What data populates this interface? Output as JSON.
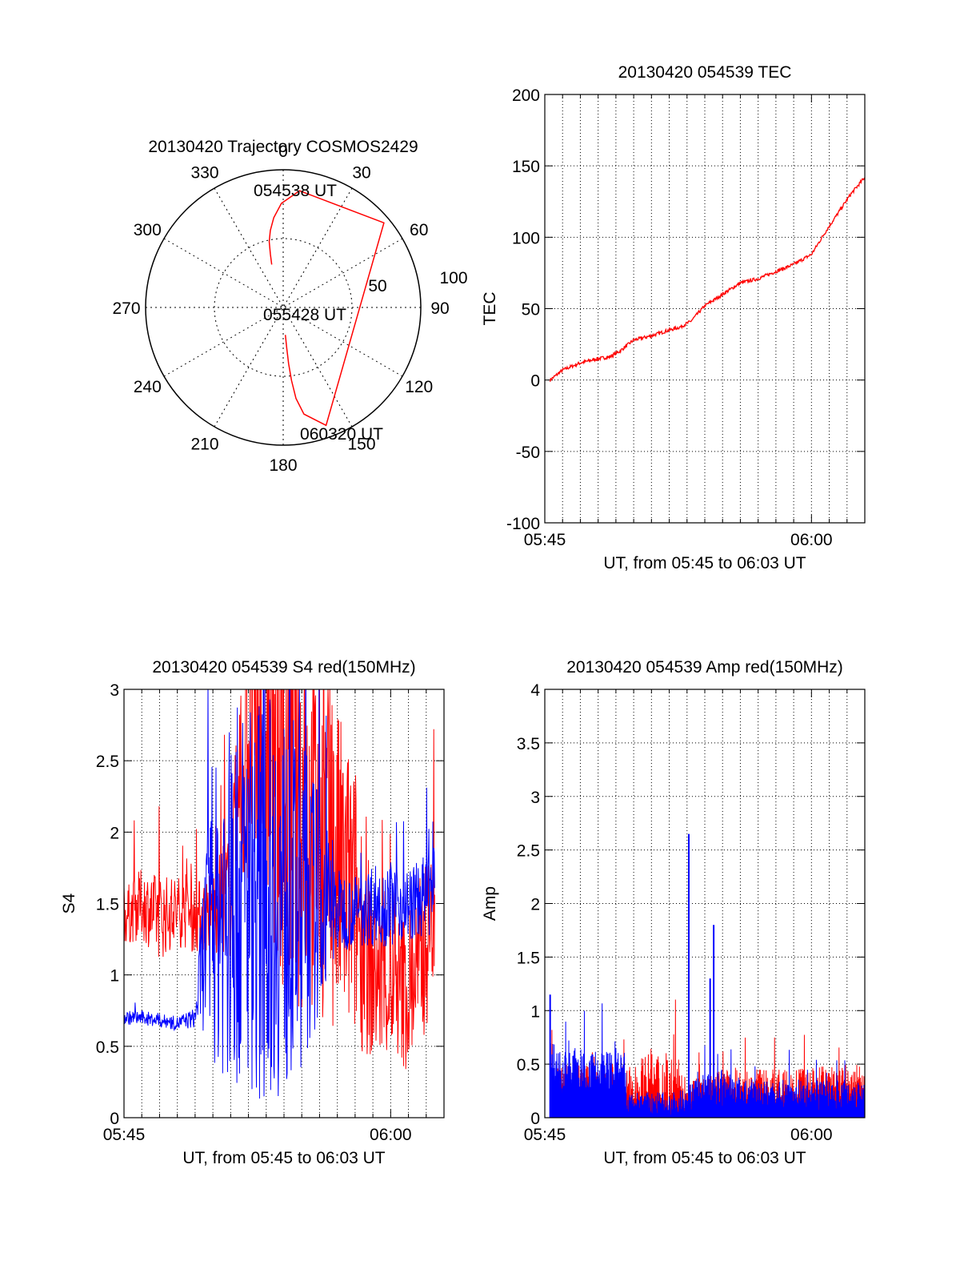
{
  "colors": {
    "red": "#ff0000",
    "blue": "#0000ff",
    "axis": "#000000"
  },
  "chart_data": [
    {
      "id": "trajectory",
      "type": "polar",
      "title": "20130420 Trajectory COSMOS2429",
      "azimuth_labels": [
        "0",
        "30",
        "60",
        "90",
        "120",
        "150",
        "180",
        "210",
        "240",
        "270",
        "300",
        "330"
      ],
      "radial_ticks": [
        "50",
        "100"
      ],
      "rlim": [
        0,
        100
      ],
      "grid": true,
      "series": [
        {
          "color": "red",
          "points": [
            {
              "az": 345.0,
              "el": 61
            },
            {
              "az": 346.5,
              "el": 54
            },
            {
              "az": 348.0,
              "el": 46
            },
            {
              "az": 350.5,
              "el": 39
            },
            {
              "az": 354.0,
              "el": 31
            },
            {
              "az": 359.0,
              "el": 22
            },
            {
              "az": 8.0,
              "el": 13
            },
            {
              "az": 50.0,
              "el": 4
            },
            {
              "az": 160.0,
              "el": 8
            },
            {
              "az": 169.0,
              "el": 19
            },
            {
              "az": 172.0,
              "el": 30
            },
            {
              "az": 173.5,
              "el": 42
            },
            {
              "az": 174.5,
              "el": 53
            },
            {
              "az": 175.0,
              "el": 63
            },
            {
              "az": 175.5,
              "el": 72
            }
          ]
        }
      ],
      "annotations": [
        "054538 UT",
        "055428 UT",
        "060320 UT"
      ]
    },
    {
      "id": "tec",
      "type": "line",
      "title": "20130420 054539 TEC",
      "xlabel": "UT, from 05:45 to 06:03 UT",
      "ylabel": "TEC",
      "xlim": [
        0,
        18
      ],
      "ylim": [
        -100,
        200
      ],
      "x_ticks": [
        {
          "v": 0,
          "label": "05:45"
        },
        {
          "v": 15,
          "label": "06:00"
        }
      ],
      "y_ticks": [
        "-100",
        "-50",
        "0",
        "50",
        "100",
        "150",
        "200"
      ],
      "grid": true,
      "series": [
        {
          "color": "red",
          "x": [
            0.3,
            1.0,
            2.0,
            3.0,
            3.6,
            4.2,
            5.0,
            6.0,
            7.0,
            7.6,
            8.2,
            9.0,
            10.0,
            11.0,
            12.0,
            13.0,
            14.0,
            15.0,
            15.8,
            16.5,
            17.2,
            18.0
          ],
          "y": [
            0,
            7,
            12,
            15,
            16,
            20,
            28,
            31,
            35,
            37,
            41,
            52,
            60,
            68,
            71,
            76,
            81,
            88,
            104,
            117,
            130,
            142
          ]
        }
      ]
    },
    {
      "id": "s4",
      "type": "line",
      "title": "20130420 054539 S4 red(150MHz)",
      "xlabel": "UT, from 05:45 to 06:03 UT",
      "ylabel": "S4",
      "xlim": [
        0,
        18
      ],
      "ylim": [
        0,
        3
      ],
      "x_ticks": [
        {
          "v": 0,
          "label": "05:45"
        },
        {
          "v": 15,
          "label": "06:00"
        }
      ],
      "y_ticks": [
        "0",
        "0.5",
        "1",
        "1.5",
        "2",
        "2.5",
        "3"
      ],
      "grid": true,
      "series": [
        {
          "color": "red",
          "x": [
            0.0,
            1.0,
            2.0,
            3.0,
            4.0,
            5.0,
            6.0,
            6.5,
            7.0,
            8.0,
            9.0,
            10.0,
            11.0,
            12.0,
            13.0,
            14.0,
            15.0,
            16.0,
            17.0,
            17.5
          ],
          "y": [
            1.4,
            1.5,
            1.4,
            1.45,
            1.4,
            1.45,
            1.6,
            2.2,
            2.8,
            2.6,
            2.3,
            2.1,
            2.0,
            1.7,
            1.5,
            1.0,
            0.9,
            0.9,
            1.2,
            1.5
          ],
          "spread": [
            0.2,
            0.25,
            0.3,
            0.25,
            0.25,
            0.3,
            0.5,
            0.8,
            1.2,
            1.3,
            1.4,
            1.4,
            1.3,
            1.2,
            1.0,
            0.6,
            0.5,
            0.6,
            0.6,
            0.5
          ]
        },
        {
          "color": "blue",
          "x": [
            0.0,
            1.0,
            2.0,
            3.0,
            4.0,
            4.5,
            5.0,
            6.0,
            7.0,
            8.0,
            9.0,
            10.0,
            11.0,
            12.0,
            13.0,
            14.0,
            15.0,
            16.0,
            17.0,
            17.5
          ],
          "y": [
            0.7,
            0.7,
            0.68,
            0.66,
            0.7,
            1.2,
            1.4,
            1.5,
            1.6,
            1.6,
            1.5,
            1.5,
            1.5,
            1.45,
            1.45,
            1.5,
            1.5,
            1.5,
            1.55,
            1.6
          ],
          "spread": [
            0.05,
            0.05,
            0.05,
            0.05,
            0.07,
            0.6,
            1.0,
            1.3,
            1.4,
            1.4,
            1.4,
            1.2,
            0.8,
            0.3,
            0.25,
            0.3,
            0.3,
            0.25,
            0.3,
            0.3
          ]
        }
      ]
    },
    {
      "id": "amp",
      "type": "line",
      "title": "20130420 054539 Amp red(150MHz)",
      "xlabel": "UT, from 05:45 to 06:03 UT",
      "ylabel": "Amp",
      "xlim": [
        0,
        18
      ],
      "ylim": [
        0,
        4
      ],
      "x_ticks": [
        {
          "v": 0,
          "label": "05:45"
        },
        {
          "v": 15,
          "label": "06:00"
        }
      ],
      "y_ticks": [
        "0",
        "0.5",
        "1",
        "1.5",
        "2",
        "2.5",
        "3",
        "3.5",
        "4"
      ],
      "grid": true,
      "series": [
        {
          "color": "red",
          "x": [
            0.3,
            2.0,
            4.5,
            4.6,
            6.0,
            7.0,
            7.5,
            8.0,
            9.0,
            10.0,
            12.0,
            14.0,
            16.0,
            18.0
          ],
          "y": [
            0.3,
            0.3,
            0.3,
            0.25,
            0.35,
            0.3,
            0.25,
            0.2,
            0.2,
            0.25,
            0.25,
            0.25,
            0.3,
            0.3
          ],
          "spread": [
            0.2,
            0.2,
            0.2,
            0.2,
            0.3,
            0.3,
            0.3,
            0.2,
            0.2,
            0.2,
            0.2,
            0.2,
            0.2,
            0.2
          ]
        },
        {
          "color": "blue",
          "x": [
            0.3,
            1.0,
            2.0,
            3.0,
            4.0,
            4.5,
            4.6,
            6.0,
            7.0,
            8.0,
            8.5,
            9.0,
            9.6,
            10.0,
            11.0,
            12.0,
            13.0,
            14.0,
            15.0,
            16.0,
            17.0,
            18.0
          ],
          "y": [
            0.45,
            0.42,
            0.4,
            0.38,
            0.4,
            0.38,
            0.12,
            0.12,
            0.12,
            0.15,
            0.2,
            0.22,
            0.25,
            0.25,
            0.22,
            0.2,
            0.2,
            0.22,
            0.2,
            0.2,
            0.22,
            0.22
          ],
          "spread": [
            0.25,
            0.25,
            0.25,
            0.25,
            0.25,
            0.25,
            0.12,
            0.12,
            0.12,
            0.12,
            0.2,
            0.2,
            0.2,
            0.2,
            0.15,
            0.15,
            0.15,
            0.15,
            0.15,
            0.15,
            0.15,
            0.15
          ],
          "peaks": [
            {
              "x": 8.1,
              "y": 2.65
            },
            {
              "x": 9.5,
              "y": 1.8
            },
            {
              "x": 9.3,
              "y": 1.3
            },
            {
              "x": 0.3,
              "y": 1.15
            }
          ]
        }
      ]
    }
  ]
}
